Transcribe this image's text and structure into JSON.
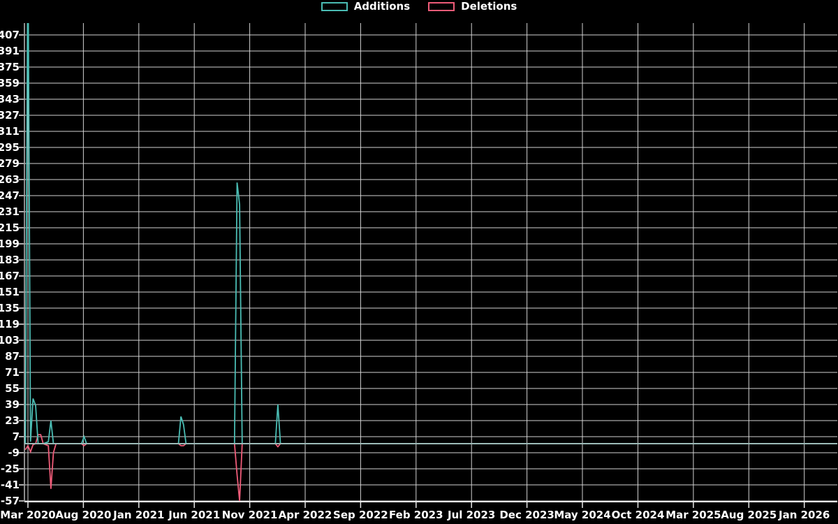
{
  "legend": {
    "additions_label": "Additions",
    "deletions_label": "Deletions"
  },
  "chart_data": {
    "type": "line",
    "title": "",
    "background_color": "#000000",
    "text_color": "#ffffff",
    "grid_color": "#d2d2d2",
    "zero_line_color": "#9cbbb8",
    "legend_position": "top-center",
    "grid": "on",
    "x_axis": {
      "epoch": "2020-03-01",
      "tick_labels": [
        "Mar 2020",
        "Aug 2020",
        "Jan 2021",
        "Jun 2021",
        "Nov 2021",
        "Apr 2022",
        "Sep 2022",
        "Feb 2023",
        "Jul 2023",
        "Dec 2023",
        "May 2024",
        "Oct 2024",
        "Mar 2025",
        "Aug 2025",
        "Jan 2026"
      ],
      "tick_month_offsets": [
        0,
        5,
        10,
        15,
        20,
        25,
        30,
        35,
        40,
        45,
        50,
        55,
        60,
        65,
        70
      ]
    },
    "y_axis": {
      "tick_labels": [
        407,
        391,
        375,
        359,
        343,
        327,
        311,
        295,
        279,
        263,
        247,
        231,
        215,
        199,
        183,
        167,
        151,
        135,
        119,
        103,
        87,
        71,
        55,
        39,
        23,
        7,
        -9,
        -25,
        -41,
        -57
      ],
      "min": -57,
      "max": 407,
      "step": 16
    },
    "series": [
      {
        "name": "Additions",
        "color": "#4abcb3",
        "points": [
          [
            "2020-02-23",
            0
          ],
          [
            "2020-03-01",
            null
          ],
          [
            "2020-03-08",
            2
          ],
          [
            "2020-03-15",
            45
          ],
          [
            "2020-03-22",
            38
          ],
          [
            "2020-03-29",
            0
          ],
          [
            "2020-04-05",
            0
          ],
          [
            "2020-04-12",
            0
          ],
          [
            "2020-04-26",
            2
          ],
          [
            "2020-05-03",
            23
          ],
          [
            "2020-05-10",
            0
          ],
          [
            "2020-05-17",
            0
          ],
          [
            "2020-07-26",
            0
          ],
          [
            "2020-08-02",
            7
          ],
          [
            "2020-08-09",
            0
          ],
          [
            "2021-04-18",
            0
          ],
          [
            "2021-04-25",
            27
          ],
          [
            "2021-05-02",
            19
          ],
          [
            "2021-05-09",
            0
          ],
          [
            "2021-09-19",
            0
          ],
          [
            "2021-09-26",
            260
          ],
          [
            "2021-10-03",
            238
          ],
          [
            "2021-10-10",
            0
          ],
          [
            "2022-01-09",
            0
          ],
          [
            "2022-01-16",
            39
          ],
          [
            "2022-01-23",
            0
          ],
          [
            "2026-03-29",
            0
          ]
        ],
        "note": "2020-03-01 spike exceeds the visible y-range (clipped at chart top, > 418)"
      },
      {
        "name": "Deletions",
        "color": "#ee5b78",
        "points": [
          [
            "2020-02-23",
            -6
          ],
          [
            "2020-03-01",
            -2
          ],
          [
            "2020-03-08",
            -8
          ],
          [
            "2020-03-15",
            -1
          ],
          [
            "2020-03-22",
            0
          ],
          [
            "2020-03-29",
            9
          ],
          [
            "2020-04-05",
            9
          ],
          [
            "2020-04-12",
            0
          ],
          [
            "2020-04-26",
            -2
          ],
          [
            "2020-05-03",
            -45
          ],
          [
            "2020-05-10",
            -9
          ],
          [
            "2020-05-17",
            0
          ],
          [
            "2020-07-26",
            0
          ],
          [
            "2020-08-02",
            -2
          ],
          [
            "2020-08-09",
            0
          ],
          [
            "2021-04-18",
            0
          ],
          [
            "2021-04-25",
            -2
          ],
          [
            "2021-05-02",
            -2
          ],
          [
            "2021-05-09",
            0
          ],
          [
            "2021-09-19",
            0
          ],
          [
            "2021-09-26",
            -31
          ],
          [
            "2021-10-03",
            -57
          ],
          [
            "2021-10-10",
            0
          ],
          [
            "2022-01-09",
            0
          ],
          [
            "2022-01-16",
            -3
          ],
          [
            "2022-01-23",
            0
          ],
          [
            "2026-03-29",
            0
          ]
        ]
      }
    ]
  }
}
